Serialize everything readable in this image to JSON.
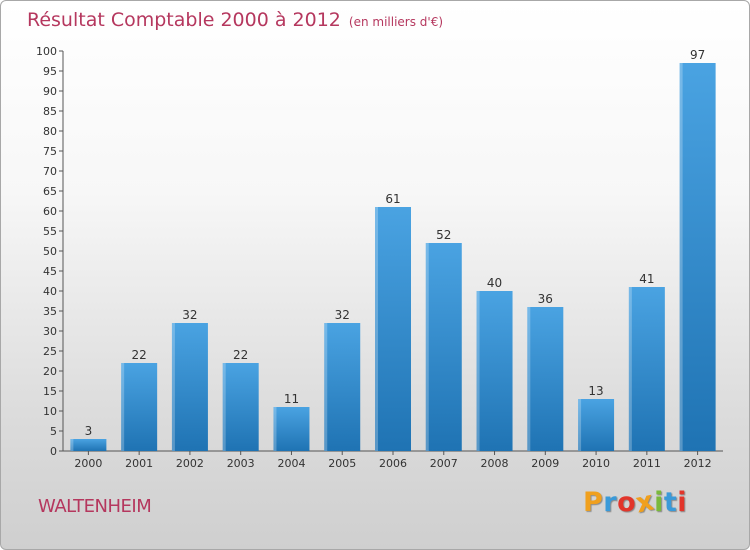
{
  "header": {
    "title": "Résultat Comptable 2000 à 2012",
    "unit": "(en milliers d'€)"
  },
  "footer": {
    "commune": "WALTENHEIM",
    "logo_letters": [
      "P",
      "r",
      "o",
      "x",
      "i",
      "t",
      "i"
    ],
    "logo_text": "Proxiti",
    "logo_colors": [
      "#f0a01e",
      "#3a9ad9",
      "#e2352b",
      "#f0a01e",
      "#7ab93b",
      "#3a9ad9",
      "#e2352b"
    ]
  },
  "chart_data": {
    "type": "bar",
    "title": "Résultat Comptable 2000 à 2012",
    "subtitle": "(en milliers d'€)",
    "xlabel": "",
    "ylabel": "",
    "categories": [
      "2000",
      "2001",
      "2002",
      "2003",
      "2004",
      "2005",
      "2006",
      "2007",
      "2008",
      "2009",
      "2010",
      "2011",
      "2012"
    ],
    "values": [
      3,
      22,
      32,
      22,
      11,
      32,
      61,
      52,
      40,
      36,
      13,
      41,
      97
    ],
    "ylim": [
      0,
      100
    ],
    "ytick_step": 5,
    "grid": false,
    "bar_color": "#4aa3e2",
    "bar_color_dark": "#1f73b3"
  }
}
